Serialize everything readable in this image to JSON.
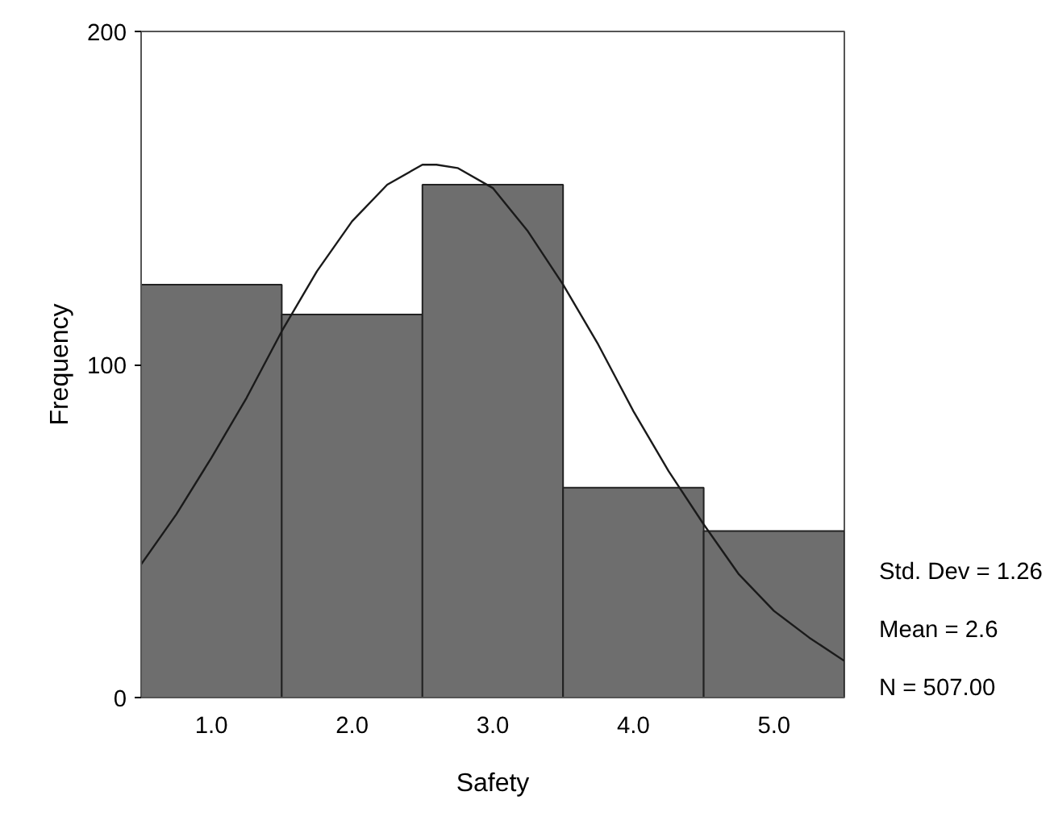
{
  "chart_data": {
    "type": "histogram",
    "xlabel": "Safety",
    "ylabel": "Frequency",
    "bins": [
      0.5,
      1.5,
      2.5,
      3.5,
      4.5,
      5.5
    ],
    "series": [
      {
        "color": "#6e6e6e",
        "values": [
          124,
          115,
          154,
          63,
          50
        ]
      },
      {
        "type": "line",
        "color": "#1a1a1a",
        "x": [
          0.5,
          0.75,
          1.0,
          1.25,
          1.5,
          1.75,
          2.0,
          2.25,
          2.5,
          2.6,
          2.75,
          3.0,
          3.25,
          3.5,
          3.75,
          4.0,
          4.25,
          4.5,
          4.75,
          5.0,
          5.25,
          5.5
        ],
        "values": [
          40,
          55,
          72,
          90,
          110,
          128,
          143,
          154,
          160,
          160,
          159,
          153,
          140,
          124,
          106,
          86,
          68,
          52,
          37,
          26,
          18,
          11
        ]
      }
    ],
    "xlim": [
      0.5,
      5.5
    ],
    "ylim": [
      0,
      200
    ],
    "xticks": [
      {
        "value": 1,
        "label": "1.0"
      },
      {
        "value": 2,
        "label": "2.0"
      },
      {
        "value": 3,
        "label": "3.0"
      },
      {
        "value": 4,
        "label": "4.0"
      },
      {
        "value": 5,
        "label": "5.0"
      }
    ],
    "yticks": [
      0,
      100,
      200
    ],
    "annotations": [
      "Std. Dev = 1.26",
      "Mean = 2.6",
      "N = 507.00"
    ],
    "grid": false
  }
}
